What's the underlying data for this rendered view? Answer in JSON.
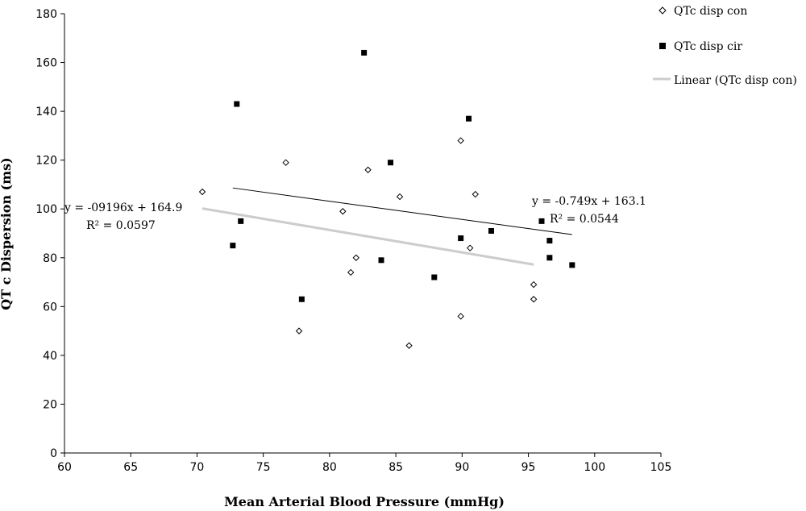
{
  "chart_data": {
    "type": "scatter",
    "title": "",
    "xlabel": "Mean Arterial Blood Pressure (mmHg)",
    "ylabel": "QT c Dispersion (ms)",
    "xlim": [
      60,
      105
    ],
    "ylim": [
      0,
      180
    ],
    "xticks": [
      "60",
      "65",
      "70",
      "75",
      "80",
      "85",
      "90",
      "95",
      "100",
      "105"
    ],
    "yticks": [
      "0",
      "20",
      "40",
      "60",
      "80",
      "100",
      "120",
      "140",
      "160",
      "180"
    ],
    "grid": false,
    "legend_position": "top-right",
    "legend": [
      "QTc disp con",
      "QTc disp cir",
      "Linear (QTc disp con)"
    ],
    "series": [
      {
        "name": "QTc disp con",
        "marker": "diamond-open",
        "color": "#000000",
        "points": [
          [
            70.4,
            107
          ],
          [
            76.7,
            119
          ],
          [
            77.7,
            50
          ],
          [
            81.0,
            99
          ],
          [
            81.6,
            74
          ],
          [
            82.0,
            80
          ],
          [
            82.9,
            116
          ],
          [
            85.3,
            105
          ],
          [
            86.0,
            44
          ],
          [
            89.9,
            128
          ],
          [
            89.9,
            56
          ],
          [
            90.6,
            84
          ],
          [
            91.0,
            106
          ],
          [
            95.4,
            69
          ],
          [
            95.4,
            63
          ]
        ]
      },
      {
        "name": "QTc disp cir",
        "marker": "square-filled",
        "color": "#000000",
        "points": [
          [
            72.7,
            85
          ],
          [
            73.0,
            143
          ],
          [
            73.3,
            95
          ],
          [
            77.9,
            63
          ],
          [
            82.6,
            164
          ],
          [
            83.9,
            79
          ],
          [
            84.6,
            119
          ],
          [
            87.9,
            72
          ],
          [
            89.9,
            88
          ],
          [
            90.5,
            137
          ],
          [
            92.2,
            91
          ],
          [
            96.0,
            95
          ],
          [
            96.6,
            87
          ],
          [
            96.6,
            80
          ],
          [
            98.3,
            77
          ]
        ]
      }
    ],
    "trendlines": [
      {
        "name": "Linear (QTc disp con)",
        "color": "#cccccc",
        "x": [
          70.4,
          95.4
        ],
        "y": [
          100.2,
          77.2
        ]
      },
      {
        "color": "#000000",
        "x": [
          72.7,
          98.3
        ],
        "y": [
          108.6,
          89.5
        ]
      }
    ],
    "annotations": [
      {
        "line1": "y = -09196x + 164.9",
        "line2": "R² = 0.0597"
      },
      {
        "line1": "y = -0.749x + 163.1",
        "line2": "R² = 0.0544"
      }
    ]
  }
}
